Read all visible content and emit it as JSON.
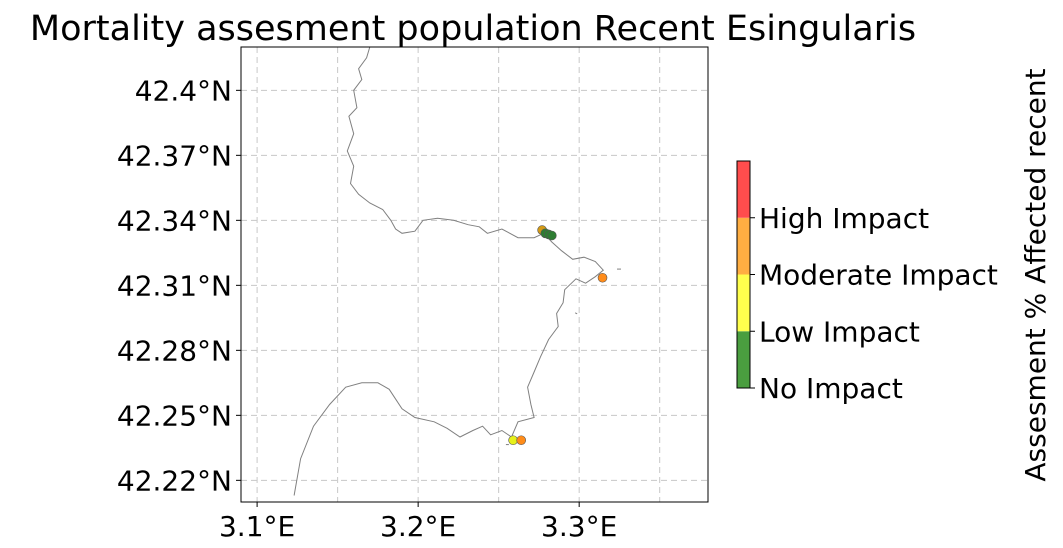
{
  "chart_data": {
    "type": "scatter",
    "title": "Mortality assesment population Recent Esingularis",
    "x_ticks": [
      "3.1°E",
      "3.2°E",
      "3.3°E"
    ],
    "x_tick_values": [
      3.1,
      3.2,
      3.3
    ],
    "y_ticks": [
      "42.22°N",
      "42.25°N",
      "42.28°N",
      "42.31°N",
      "42.34°N",
      "42.37°N",
      "42.4°N"
    ],
    "y_tick_values": [
      42.22,
      42.25,
      42.28,
      42.31,
      42.34,
      42.37,
      42.4
    ],
    "xlim": [
      3.09,
      3.38
    ],
    "ylim": [
      42.21,
      42.42
    ],
    "grid": true,
    "grid_x_values": [
      3.1,
      3.15,
      3.2,
      3.25,
      3.3,
      3.35
    ],
    "grid_y_values": [
      42.22,
      42.25,
      42.28,
      42.31,
      42.34,
      42.37,
      42.4
    ],
    "colorbar": {
      "label": "Assesment % Affected recent",
      "categories": [
        "No Impact",
        "Low Impact",
        "Moderate Impact",
        "High Impact"
      ],
      "colors": [
        "#4a9e3f",
        "#ffff4d",
        "#ffae42",
        "#ff4d4d"
      ]
    },
    "points": [
      {
        "lon": 3.277,
        "lat": 42.3355,
        "category": "Moderate Impact",
        "color": "#d39a16"
      },
      {
        "lon": 3.279,
        "lat": 42.334,
        "category": "No Impact",
        "color": "#2e7d32"
      },
      {
        "lon": 3.281,
        "lat": 42.3335,
        "category": "No Impact",
        "color": "#2e7d32"
      },
      {
        "lon": 3.283,
        "lat": 42.333,
        "category": "No Impact",
        "color": "#2e7d32"
      },
      {
        "lon": 3.3145,
        "lat": 42.3135,
        "category": "Moderate Impact",
        "color": "#ff8c1a"
      },
      {
        "lon": 3.259,
        "lat": 42.2385,
        "category": "Low Impact",
        "color": "#e6f01a"
      },
      {
        "lon": 3.264,
        "lat": 42.2385,
        "category": "Moderate Impact",
        "color": "#ff8c1a"
      }
    ],
    "coastline": [
      [
        3.17,
        42.42
      ],
      [
        3.168,
        42.415
      ],
      [
        3.163,
        42.41
      ],
      [
        3.165,
        42.405
      ],
      [
        3.16,
        42.4
      ],
      [
        3.162,
        42.392
      ],
      [
        3.157,
        42.388
      ],
      [
        3.16,
        42.38
      ],
      [
        3.156,
        42.372
      ],
      [
        3.16,
        42.365
      ],
      [
        3.158,
        42.357
      ],
      [
        3.163,
        42.352
      ],
      [
        3.17,
        42.348
      ],
      [
        3.178,
        42.345
      ],
      [
        3.183,
        42.34
      ],
      [
        3.186,
        42.336
      ],
      [
        3.19,
        42.334
      ],
      [
        3.198,
        42.335
      ],
      [
        3.203,
        42.34
      ],
      [
        3.212,
        42.341
      ],
      [
        3.222,
        42.34
      ],
      [
        3.231,
        42.338
      ],
      [
        3.238,
        42.337
      ],
      [
        3.243,
        42.334
      ],
      [
        3.252,
        42.336
      ],
      [
        3.262,
        42.332
      ],
      [
        3.272,
        42.332
      ],
      [
        3.278,
        42.334
      ],
      [
        3.283,
        42.33
      ],
      [
        3.289,
        42.326
      ],
      [
        3.296,
        42.322
      ],
      [
        3.303,
        42.323
      ],
      [
        3.31,
        42.321
      ],
      [
        3.315,
        42.317
      ],
      [
        3.31,
        42.314
      ],
      [
        3.304,
        42.311
      ],
      [
        3.298,
        42.313
      ],
      [
        3.291,
        42.308
      ],
      [
        3.29,
        42.302
      ],
      [
        3.286,
        42.297
      ],
      [
        3.287,
        42.291
      ],
      [
        3.281,
        42.285
      ],
      [
        3.276,
        42.277
      ],
      [
        3.272,
        42.27
      ],
      [
        3.268,
        42.263
      ],
      [
        3.27,
        42.255
      ],
      [
        3.272,
        42.249
      ],
      [
        3.262,
        42.247
      ],
      [
        3.258,
        42.24
      ],
      [
        3.252,
        42.243
      ],
      [
        3.245,
        42.241
      ],
      [
        3.24,
        42.245
      ],
      [
        3.234,
        42.243
      ],
      [
        3.226,
        42.24
      ],
      [
        3.218,
        42.244
      ],
      [
        3.21,
        42.247
      ],
      [
        3.198,
        42.249
      ],
      [
        3.19,
        42.253
      ],
      [
        3.182,
        42.262
      ],
      [
        3.175,
        42.265
      ],
      [
        3.165,
        42.265
      ],
      [
        3.155,
        42.263
      ],
      [
        3.145,
        42.255
      ],
      [
        3.135,
        42.245
      ],
      [
        3.127,
        42.23
      ],
      [
        3.123,
        42.213
      ]
    ]
  }
}
